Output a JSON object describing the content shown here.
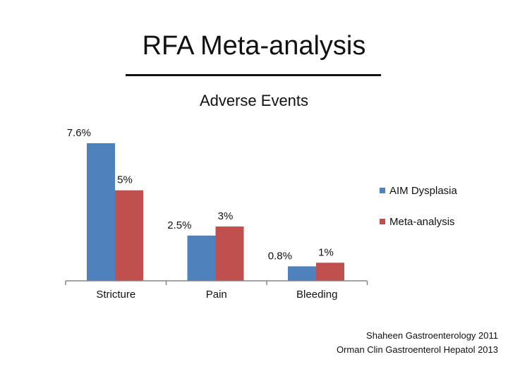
{
  "slide": {
    "title": "RFA Meta-analysis"
  },
  "citations": [
    "Shaheen Gastroenterology 2011",
    "Orman Clin Gastroenterol Hepatol 2013"
  ],
  "chart_data": {
    "type": "bar",
    "title": "Adverse Events",
    "xlabel": "",
    "ylabel": "",
    "ylim": [
      0,
      8.5
    ],
    "grid": false,
    "legend_position": "right",
    "categories": [
      "Stricture",
      "Pain",
      "Bleeding"
    ],
    "series": [
      {
        "name": "AIM Dysplasia",
        "values": [
          7.6,
          2.5,
          0.8
        ],
        "labels": [
          "7.6%",
          "2.5%",
          "0.8%"
        ],
        "color": "#4F81BD"
      },
      {
        "name": "Meta-analysis",
        "values": [
          5,
          3,
          1
        ],
        "labels": [
          "5%",
          "3%",
          "1%"
        ],
        "color": "#C0504D"
      }
    ]
  }
}
